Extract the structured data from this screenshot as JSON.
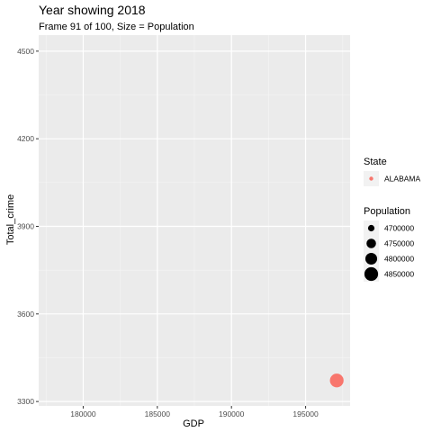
{
  "chart_data": {
    "type": "scatter",
    "title": "Year showing 2018",
    "subtitle": "Frame 91 of 100, Size = Population",
    "xlabel": "GDP",
    "ylabel": "Total_crime",
    "xlim": [
      177000,
      198000
    ],
    "ylim": [
      3285,
      4555
    ],
    "x_ticks": [
      180000,
      185000,
      190000,
      195000
    ],
    "y_ticks": [
      3300,
      3600,
      3900,
      4200,
      4500
    ],
    "grid": true,
    "legend_position": "right",
    "series": [
      {
        "name": "ALABAMA",
        "color": "#F8766D",
        "points": [
          {
            "x": 197100,
            "y": 3372,
            "size": 4862000
          }
        ]
      }
    ],
    "color_legend": {
      "title": "State",
      "entries": [
        {
          "label": "ALABAMA",
          "color": "#F8766D"
        }
      ]
    },
    "size_legend": {
      "title": "Population",
      "entries": [
        {
          "label": "4700000",
          "value": 4700000
        },
        {
          "label": "4750000",
          "value": 4750000
        },
        {
          "label": "4800000",
          "value": 4800000
        },
        {
          "label": "4850000",
          "value": 4850000
        }
      ]
    }
  }
}
